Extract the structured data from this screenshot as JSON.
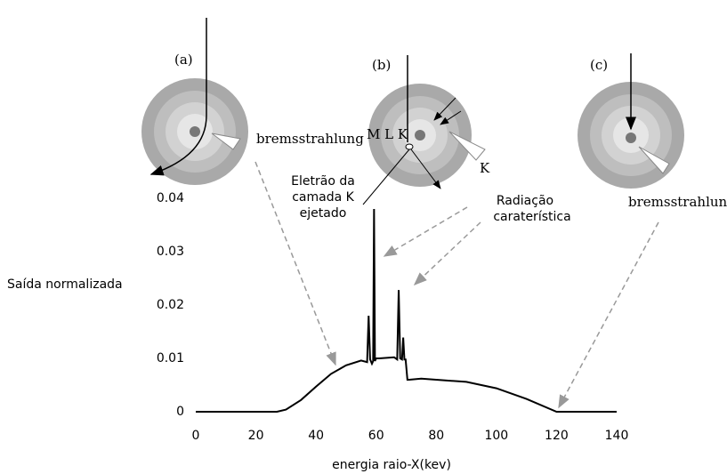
{
  "chart_data": {
    "type": "line",
    "x_label": "energia raio-X(kev)",
    "y_label": "Saída normalizada",
    "xlim": [
      0,
      140
    ],
    "xticks": [
      0,
      20,
      40,
      60,
      80,
      100,
      120,
      140
    ],
    "ylim": [
      0,
      0.04
    ],
    "yticks": [
      0,
      0.01,
      0.02,
      0.03,
      0.04
    ],
    "grid": false,
    "series": [
      {
        "color": "#000000",
        "x": [
          0,
          20,
          27,
          30,
          35,
          40,
          45,
          50,
          55,
          57,
          57.5,
          58,
          58.6,
          59,
          59.3,
          59.6,
          60,
          61,
          66,
          67,
          67.5,
          68,
          68.6,
          69,
          69.4,
          69.8,
          70.4,
          71,
          75,
          80,
          90,
          100,
          110,
          120,
          140
        ],
        "values": [
          0,
          0,
          0,
          0.0004,
          0.0022,
          0.0047,
          0.0071,
          0.0087,
          0.0096,
          0.0093,
          0.018,
          0.0098,
          0.009,
          0.0095,
          0.038,
          0.0095,
          0.01,
          0.01,
          0.0102,
          0.0098,
          0.0228,
          0.01,
          0.0098,
          0.0139,
          0.0098,
          0.0098,
          0.006,
          0.006,
          0.0062,
          0.006,
          0.0056,
          0.0044,
          0.0024,
          0,
          0
        ]
      }
    ],
    "annotations": [
      "(a)",
      "(b)",
      "(c)",
      "bremsstrahlung",
      "M L K",
      "K",
      "Eletrão da",
      "camada K",
      "ejetado",
      "Radiação",
      "caraterística",
      "bremsstrahlung"
    ]
  }
}
